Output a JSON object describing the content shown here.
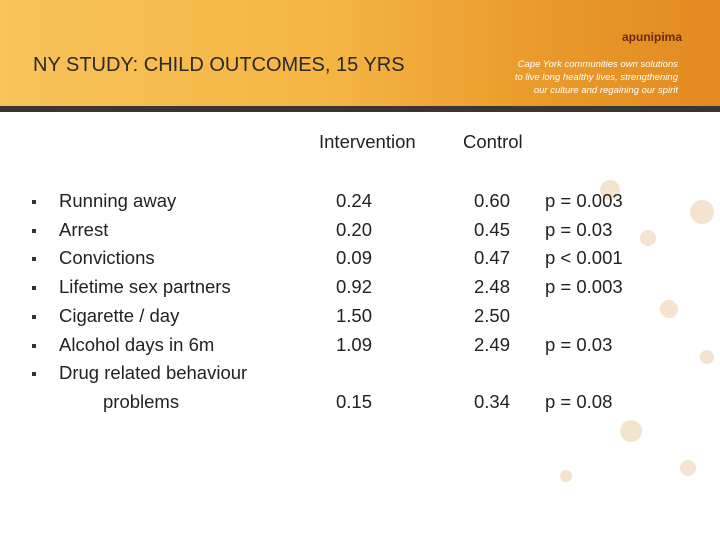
{
  "header": {
    "title": "NY STUDY:  CHILD OUTCOMES, 15 YRS",
    "tagline": [
      "Cape York communities own solutions",
      "to live long healthy lives, strengthening",
      "our culture and regaining our spirit"
    ],
    "logo": "apunipima"
  },
  "table": {
    "columns": [
      "Intervention",
      "Control"
    ],
    "rows": [
      {
        "label": "Running away",
        "intervention": "0.24",
        "control": "0.60",
        "p": "p = 0.003"
      },
      {
        "label": "Arrest",
        "intervention": "0.20",
        "control": "0.45",
        "p": "p = 0.03"
      },
      {
        "label": "Convictions",
        "intervention": "0.09",
        "control": "0.47",
        "p": "p < 0.001"
      },
      {
        "label": "Lifetime sex partners",
        "intervention": "0.92",
        "control": "2.48",
        "p": "p = 0.003"
      },
      {
        "label": "Cigarette / day",
        "intervention": "1.50",
        "control": "2.50"
      },
      {
        "label": "Alcohol days in 6m",
        "intervention": "1.09",
        "control": "2.49",
        "p": "p = 0.03"
      },
      {
        "label": "Drug related behaviour",
        "label_cont": "problems",
        "intervention": "0.15",
        "control": "0.34",
        "p": "p = 0.08"
      }
    ]
  }
}
